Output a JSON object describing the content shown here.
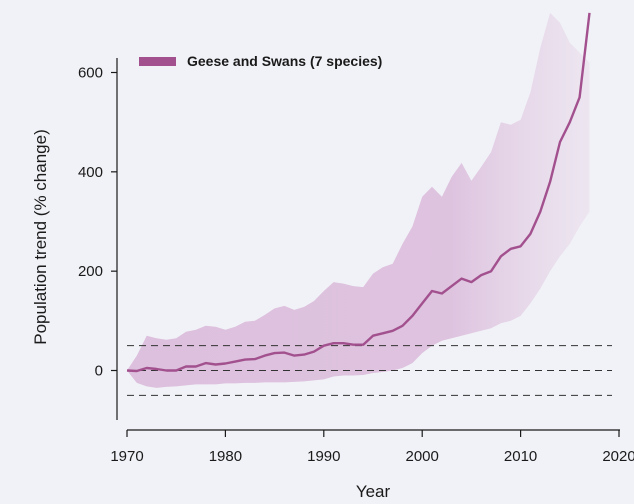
{
  "chart_data": {
    "type": "line",
    "xlabel": "Year",
    "ylabel": "Population trend (% change)",
    "xlim": [
      1970,
      2020
    ],
    "ylim": [
      -120,
      720
    ],
    "x_ticks": [
      1970,
      1980,
      1990,
      2000,
      2010,
      2020
    ],
    "y_ticks": [
      0,
      200,
      400,
      600
    ],
    "reference_lines": [
      -50,
      0,
      50
    ],
    "grid": false,
    "legend_position": "top-left",
    "colors": {
      "line": "#a2518e",
      "band": "#d9b7d9",
      "background": "#f1f2f7",
      "reference": "#333333"
    },
    "series": [
      {
        "name": "Geese and Swans (7 species)",
        "x": [
          1970,
          1971,
          1972,
          1973,
          1974,
          1975,
          1976,
          1977,
          1978,
          1979,
          1980,
          1981,
          1982,
          1983,
          1984,
          1985,
          1986,
          1987,
          1988,
          1989,
          1990,
          1991,
          1992,
          1993,
          1994,
          1995,
          1996,
          1997,
          1998,
          1999,
          2000,
          2001,
          2002,
          2003,
          2004,
          2005,
          2006,
          2007,
          2008,
          2009,
          2010,
          2011,
          2012,
          2013,
          2014,
          2015,
          2016,
          2017
        ],
        "values": [
          0,
          -1,
          5,
          3,
          0,
          0,
          8,
          8,
          15,
          12,
          14,
          18,
          22,
          23,
          30,
          35,
          36,
          30,
          32,
          38,
          50,
          55,
          55,
          52,
          52,
          70,
          75,
          80,
          90,
          110,
          135,
          160,
          155,
          170,
          185,
          178,
          192,
          200,
          230,
          245,
          250,
          275,
          320,
          380,
          460,
          500,
          550,
          720
        ],
        "lower": [
          0,
          -25,
          -32,
          -35,
          -33,
          -32,
          -30,
          -28,
          -28,
          -28,
          -26,
          -26,
          -25,
          -25,
          -24,
          -24,
          -24,
          -23,
          -22,
          -20,
          -18,
          -12,
          -10,
          -10,
          -9,
          -5,
          -3,
          0,
          5,
          15,
          35,
          50,
          60,
          65,
          70,
          75,
          80,
          85,
          95,
          100,
          110,
          135,
          165,
          200,
          230,
          255,
          290,
          320
        ],
        "upper": [
          0,
          30,
          70,
          65,
          62,
          65,
          78,
          82,
          90,
          88,
          82,
          88,
          98,
          100,
          112,
          125,
          130,
          122,
          128,
          140,
          160,
          178,
          175,
          170,
          168,
          195,
          208,
          215,
          255,
          290,
          350,
          370,
          350,
          390,
          418,
          382,
          410,
          440,
          500,
          495,
          505,
          560,
          650,
          720,
          700,
          660,
          640,
          620
        ]
      }
    ]
  }
}
